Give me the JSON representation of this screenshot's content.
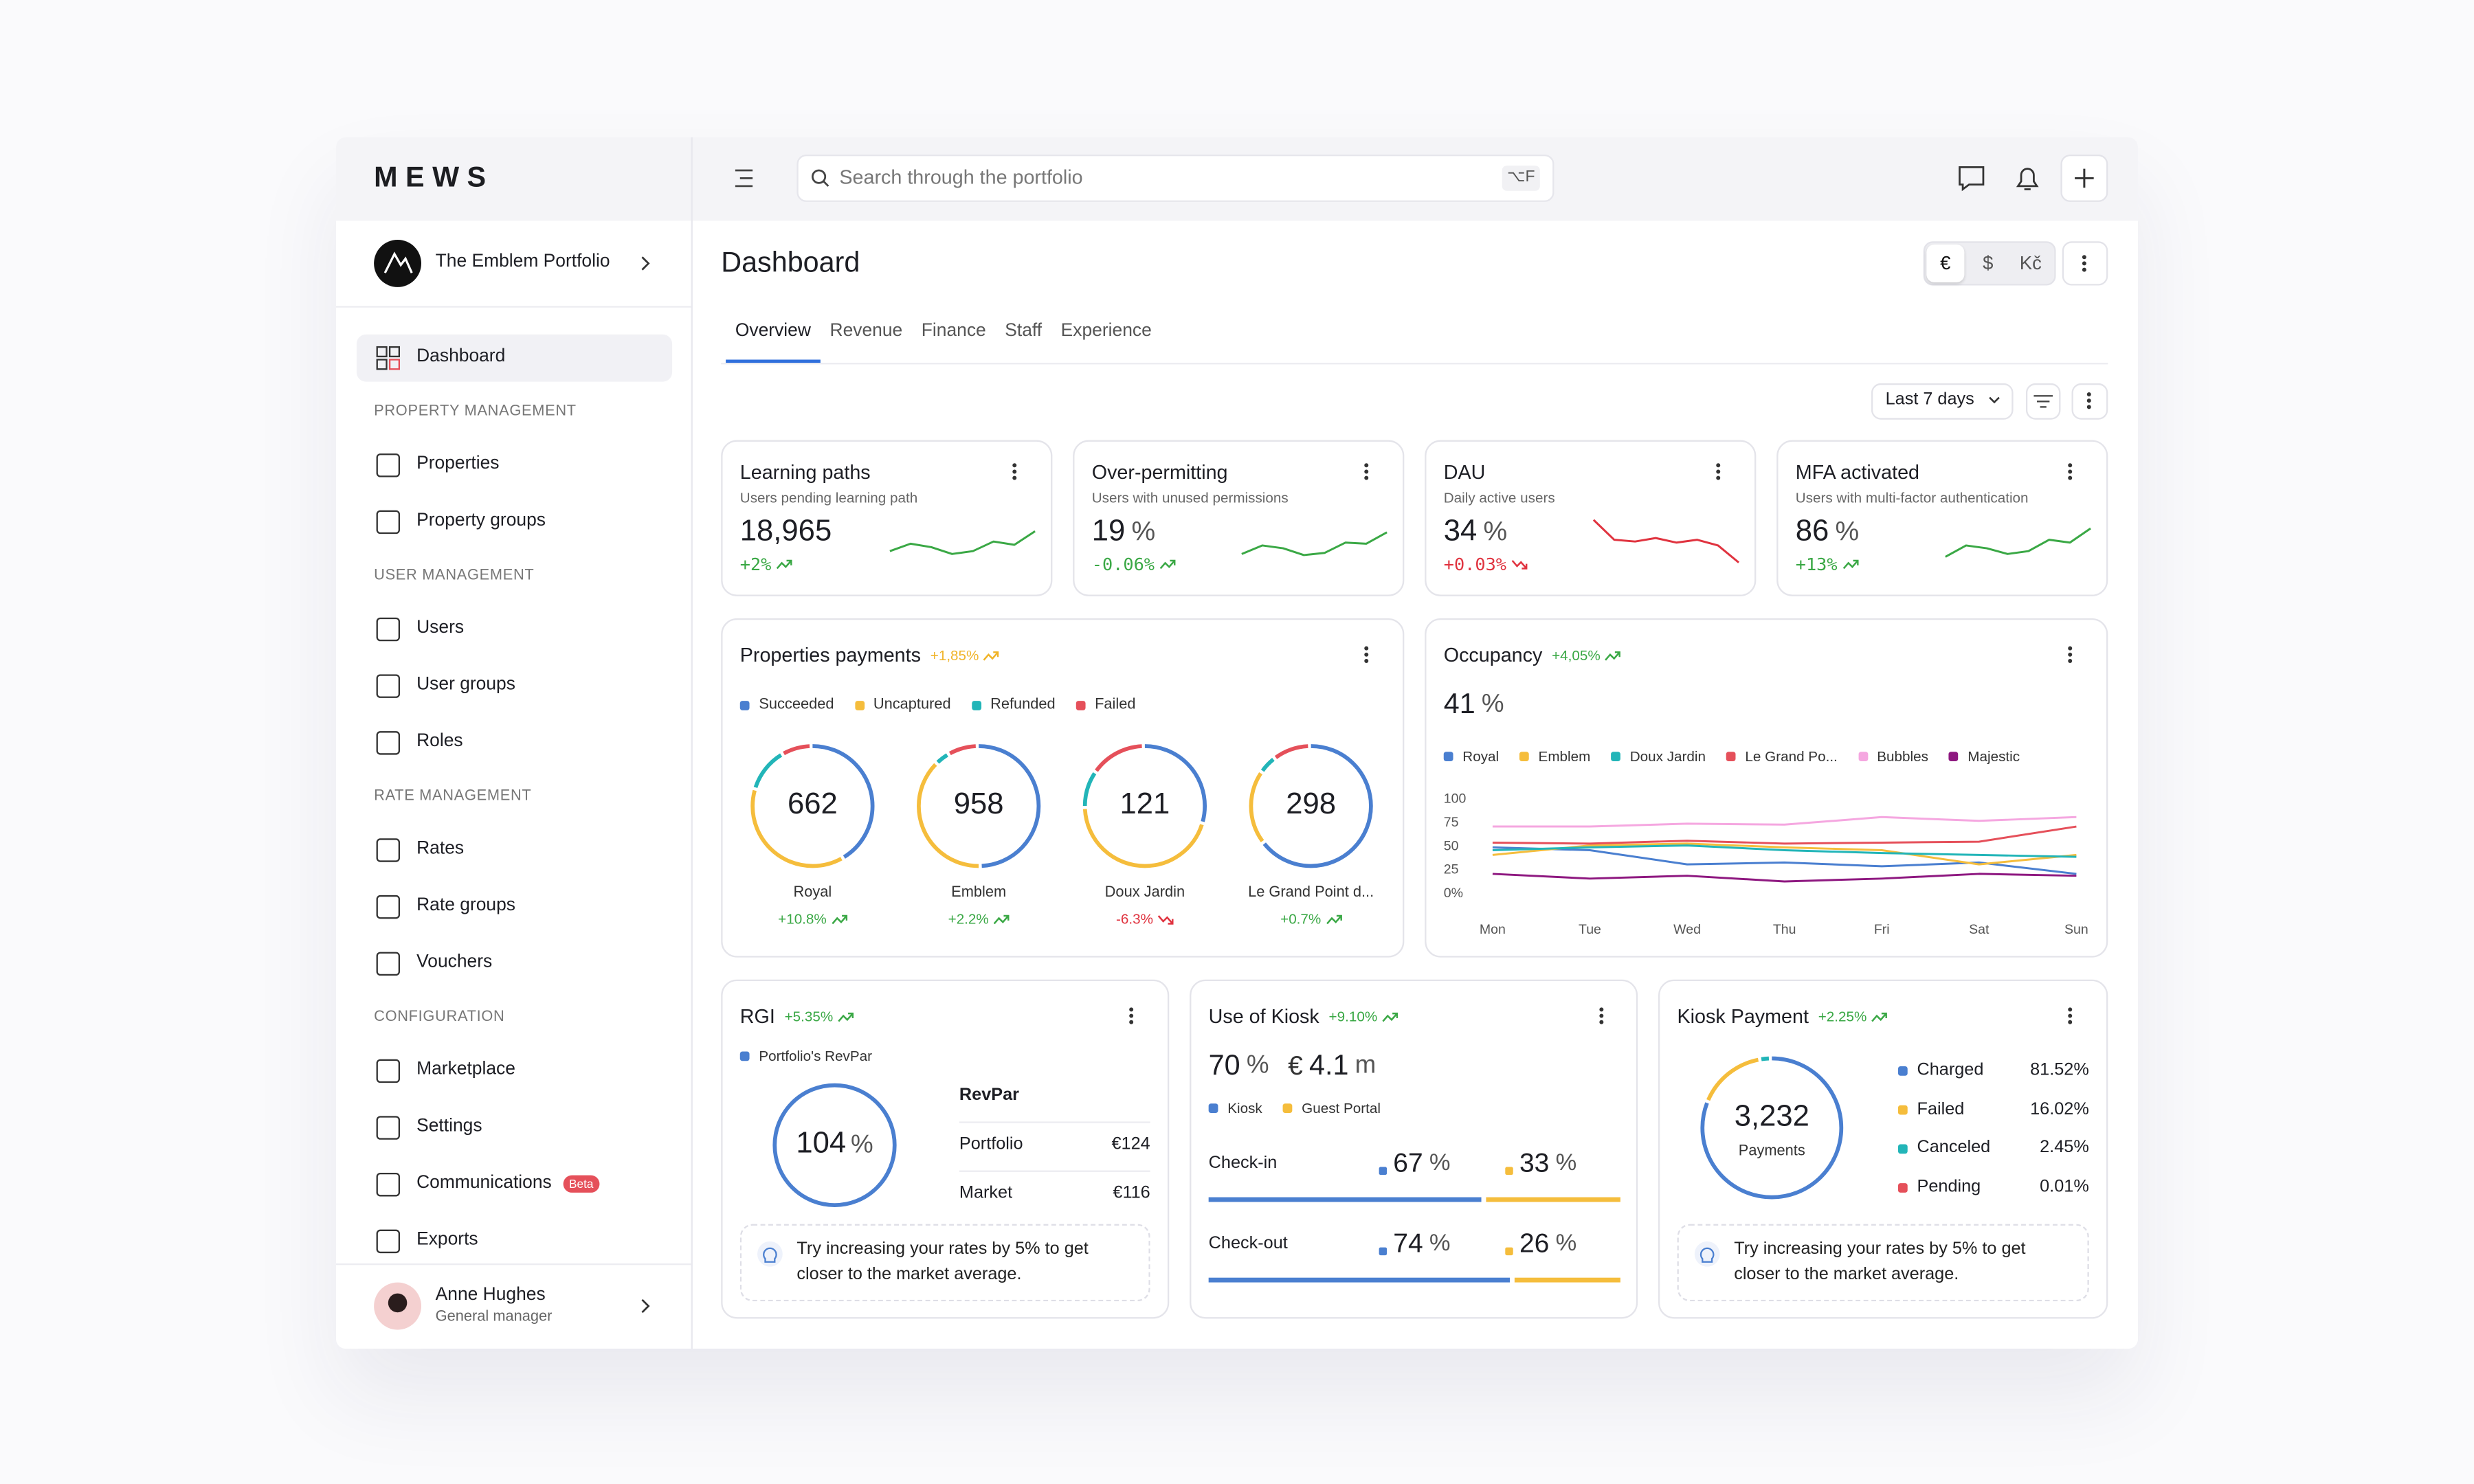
{
  "brand": "MEWS",
  "search": {
    "placeholder": "Search through the portfolio",
    "shortcut": "⌥F"
  },
  "sidebar": {
    "portfolio": "The Emblem Portfolio",
    "top": {
      "label": "Dashboard"
    },
    "sections": [
      {
        "heading": "PROPERTY MANAGEMENT",
        "items": [
          {
            "label": "Properties"
          },
          {
            "label": "Property groups"
          }
        ]
      },
      {
        "heading": "USER MANAGEMENT",
        "items": [
          {
            "label": "Users"
          },
          {
            "label": "User groups"
          },
          {
            "label": "Roles"
          }
        ]
      },
      {
        "heading": "RATE MANAGEMENT",
        "items": [
          {
            "label": "Rates"
          },
          {
            "label": "Rate groups"
          },
          {
            "label": "Vouchers"
          }
        ]
      },
      {
        "heading": "CONFIGURATION",
        "items": [
          {
            "label": "Marketplace"
          },
          {
            "label": "Settings"
          },
          {
            "label": "Communications",
            "badge": "Beta"
          },
          {
            "label": "Exports"
          }
        ]
      }
    ],
    "user": {
      "name": "Anne Hughes",
      "role": "General manager"
    }
  },
  "header": {
    "title": "Dashboard",
    "currencies": [
      "€",
      "$",
      "Kč"
    ],
    "tabs": [
      "Overview",
      "Revenue",
      "Finance",
      "Staff",
      "Experience"
    ],
    "range": "Last 7 days"
  },
  "kpis": [
    {
      "title": "Learning paths",
      "subtitle": "Users pending learning path",
      "value": "18,965",
      "change": "+2%",
      "trend": "up",
      "spark": [
        35,
        48,
        42,
        30,
        35,
        52,
        46,
        70
      ]
    },
    {
      "title": "Over-permitting",
      "subtitle": "Users with unused permissions",
      "value": "19",
      "unit": "%",
      "change": "-0.06%",
      "trend": "up",
      "spark": [
        30,
        45,
        40,
        28,
        32,
        50,
        48,
        68
      ]
    },
    {
      "title": "DAU",
      "subtitle": "Daily active users",
      "value": "34",
      "unit": "%",
      "change": "+0.03%",
      "trend": "down",
      "spark": [
        90,
        55,
        52,
        58,
        50,
        55,
        45,
        15
      ]
    },
    {
      "title": "MFA activated",
      "subtitle": "Users with multi-factor authentication",
      "value": "86",
      "unit": "%",
      "change": "+13%",
      "trend": "up",
      "spark": [
        25,
        45,
        40,
        30,
        35,
        55,
        50,
        75
      ]
    }
  ],
  "payments": {
    "title": "Properties payments",
    "change": "+1,85%",
    "trend": "up",
    "color": "#f0b429",
    "legend": [
      {
        "name": "Succeeded",
        "color": "#4a7fd0"
      },
      {
        "name": "Uncaptured",
        "color": "#f5bd3c"
      },
      {
        "name": "Refunded",
        "color": "#22b5b8"
      },
      {
        "name": "Failed",
        "color": "#e5505a"
      }
    ],
    "rings": [
      {
        "value": "662",
        "name": "Royal",
        "change": "+10.8%",
        "trend": "up",
        "shares": [
          42,
          38,
          12,
          8
        ]
      },
      {
        "value": "958",
        "name": "Emblem",
        "change": "+2.2%",
        "trend": "up",
        "shares": [
          50,
          38,
          4,
          8
        ]
      },
      {
        "value": "121",
        "name": "Doux Jardin",
        "change": "-6.3%",
        "trend": "down",
        "shares": [
          30,
          45,
          10,
          15
        ]
      },
      {
        "value": "298",
        "name": "Le Grand Point d...",
        "change": "+0.7%",
        "trend": "up",
        "shares": [
          65,
          20,
          5,
          10
        ]
      }
    ]
  },
  "occupancy": {
    "title": "Occupancy",
    "change": "+4,05%",
    "trend": "up",
    "value": "41",
    "unit": "%",
    "chart": {
      "type": "line",
      "categories": [
        "Mon",
        "Tue",
        "Wed",
        "Thu",
        "Fri",
        "Sat",
        "Sun"
      ],
      "series": [
        {
          "name": "Royal",
          "color": "#4a7fd0",
          "values": [
            48,
            45,
            30,
            32,
            28,
            32,
            20
          ]
        },
        {
          "name": "Emblem",
          "color": "#f5bd3c",
          "values": [
            40,
            50,
            52,
            48,
            45,
            30,
            40
          ]
        },
        {
          "name": "Doux Jardin",
          "color": "#22b5b8",
          "values": [
            45,
            48,
            50,
            45,
            42,
            40,
            38
          ]
        },
        {
          "name": "Le Grand Po...",
          "color": "#e5505a",
          "values": [
            53,
            52,
            55,
            52,
            53,
            54,
            70
          ]
        },
        {
          "name": "Bubbles",
          "color": "#f5a7e0",
          "values": [
            70,
            70,
            73,
            72,
            80,
            76,
            80
          ]
        },
        {
          "name": "Majestic",
          "color": "#8e1880",
          "values": [
            20,
            15,
            18,
            12,
            15,
            20,
            18
          ]
        }
      ],
      "ylim": [
        0,
        100
      ],
      "yticks": [
        {
          "value": 0,
          "label": "0%"
        },
        25,
        50,
        75,
        100
      ]
    }
  },
  "rgi": {
    "title": "RGI",
    "change": "+5.35%",
    "trend": "up",
    "legend": "Portfolio's RevPar",
    "value": 104,
    "unit": "%",
    "table": {
      "header": "RevPar",
      "rows": [
        [
          "Portfolio",
          "€124"
        ],
        [
          "Market",
          "€116"
        ]
      ]
    },
    "tip": "Try increasing your rates by 5% to get closer to the market average."
  },
  "kiosk": {
    "title": "Use of Kiosk",
    "change": "+9.10%",
    "trend": "up",
    "stats": [
      {
        "value": "70",
        "unit": "%"
      },
      {
        "prefix": "€",
        "value": "4.1",
        "unit": "m"
      }
    ],
    "legend": [
      {
        "name": "Kiosk",
        "color": "#4a7fd0"
      },
      {
        "name": "Guest Portal",
        "color": "#f5bd3c"
      }
    ],
    "unit": "%",
    "rows": [
      {
        "label": "Check-in",
        "values": [
          67,
          33
        ]
      },
      {
        "label": "Check-out",
        "values": [
          74,
          26
        ]
      }
    ]
  },
  "kiosk_payment": {
    "title": "Kiosk Payment",
    "change": "+2.25%",
    "trend": "up",
    "total": "3,232",
    "total_label": "Payments",
    "unit": "%",
    "items": [
      {
        "name": "Charged",
        "value": 81.52,
        "color": "#4a7fd0"
      },
      {
        "name": "Failed",
        "value": 16.02,
        "color": "#f5bd3c"
      },
      {
        "name": "Canceled",
        "value": 2.45,
        "color": "#22b5b8"
      },
      {
        "name": "Pending",
        "value": 0.01,
        "color": "#e5505a"
      }
    ],
    "tip": "Try increasing your rates by 5% to get closer to the market average."
  }
}
